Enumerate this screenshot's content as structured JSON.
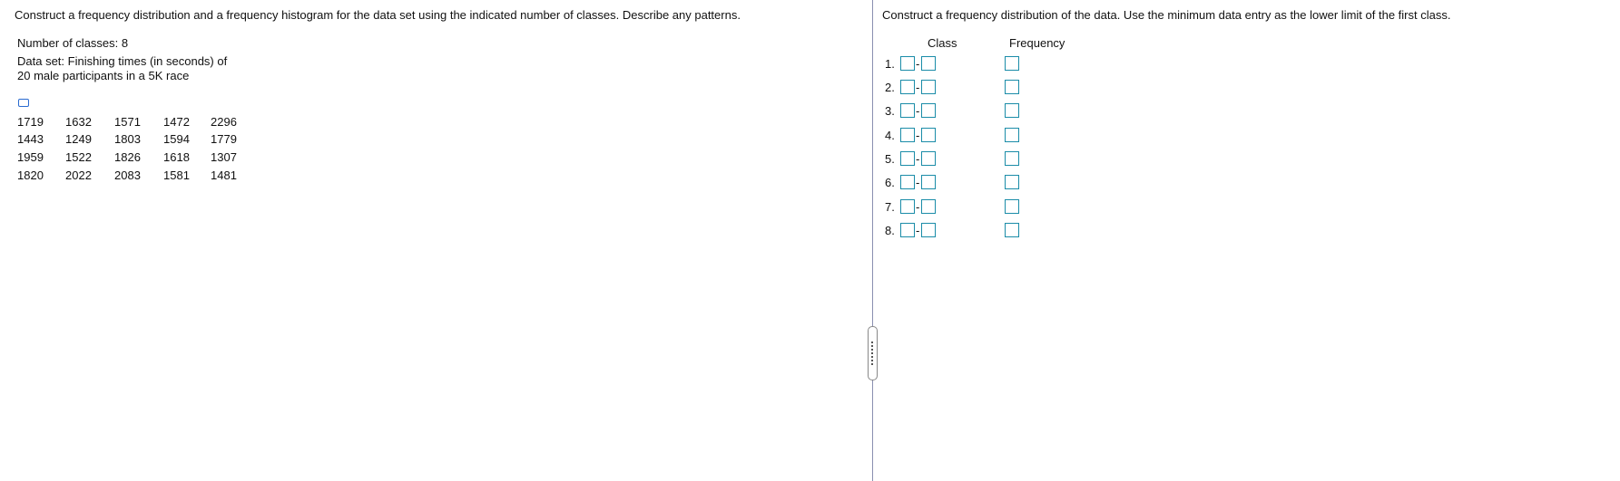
{
  "left": {
    "instruction": "Construct a frequency distribution and a frequency histogram for the data set using the indicated number of classes. Describe any patterns.",
    "classes": "Number of classes: 8",
    "dataset_lines": [
      "Data set: Finishing times (in seconds) of",
      "20 male participants in a 5K race"
    ],
    "table": {
      "rows": [
        [
          1719,
          1632,
          1571,
          1472,
          2296
        ],
        [
          1443,
          1249,
          1803,
          1594,
          1779
        ],
        [
          1959,
          1522,
          1826,
          1618,
          1307
        ],
        [
          1820,
          2022,
          2083,
          1581,
          1481
        ]
      ]
    }
  },
  "right": {
    "instruction": "Construct a frequency distribution of the data. Use the minimum data entry as the lower limit of the first class.",
    "columns": [
      "Class",
      "Frequency"
    ],
    "rows": [
      "1.",
      "2.",
      "3.",
      "4.",
      "5.",
      "6.",
      "7.",
      "8."
    ],
    "separator": "-"
  }
}
